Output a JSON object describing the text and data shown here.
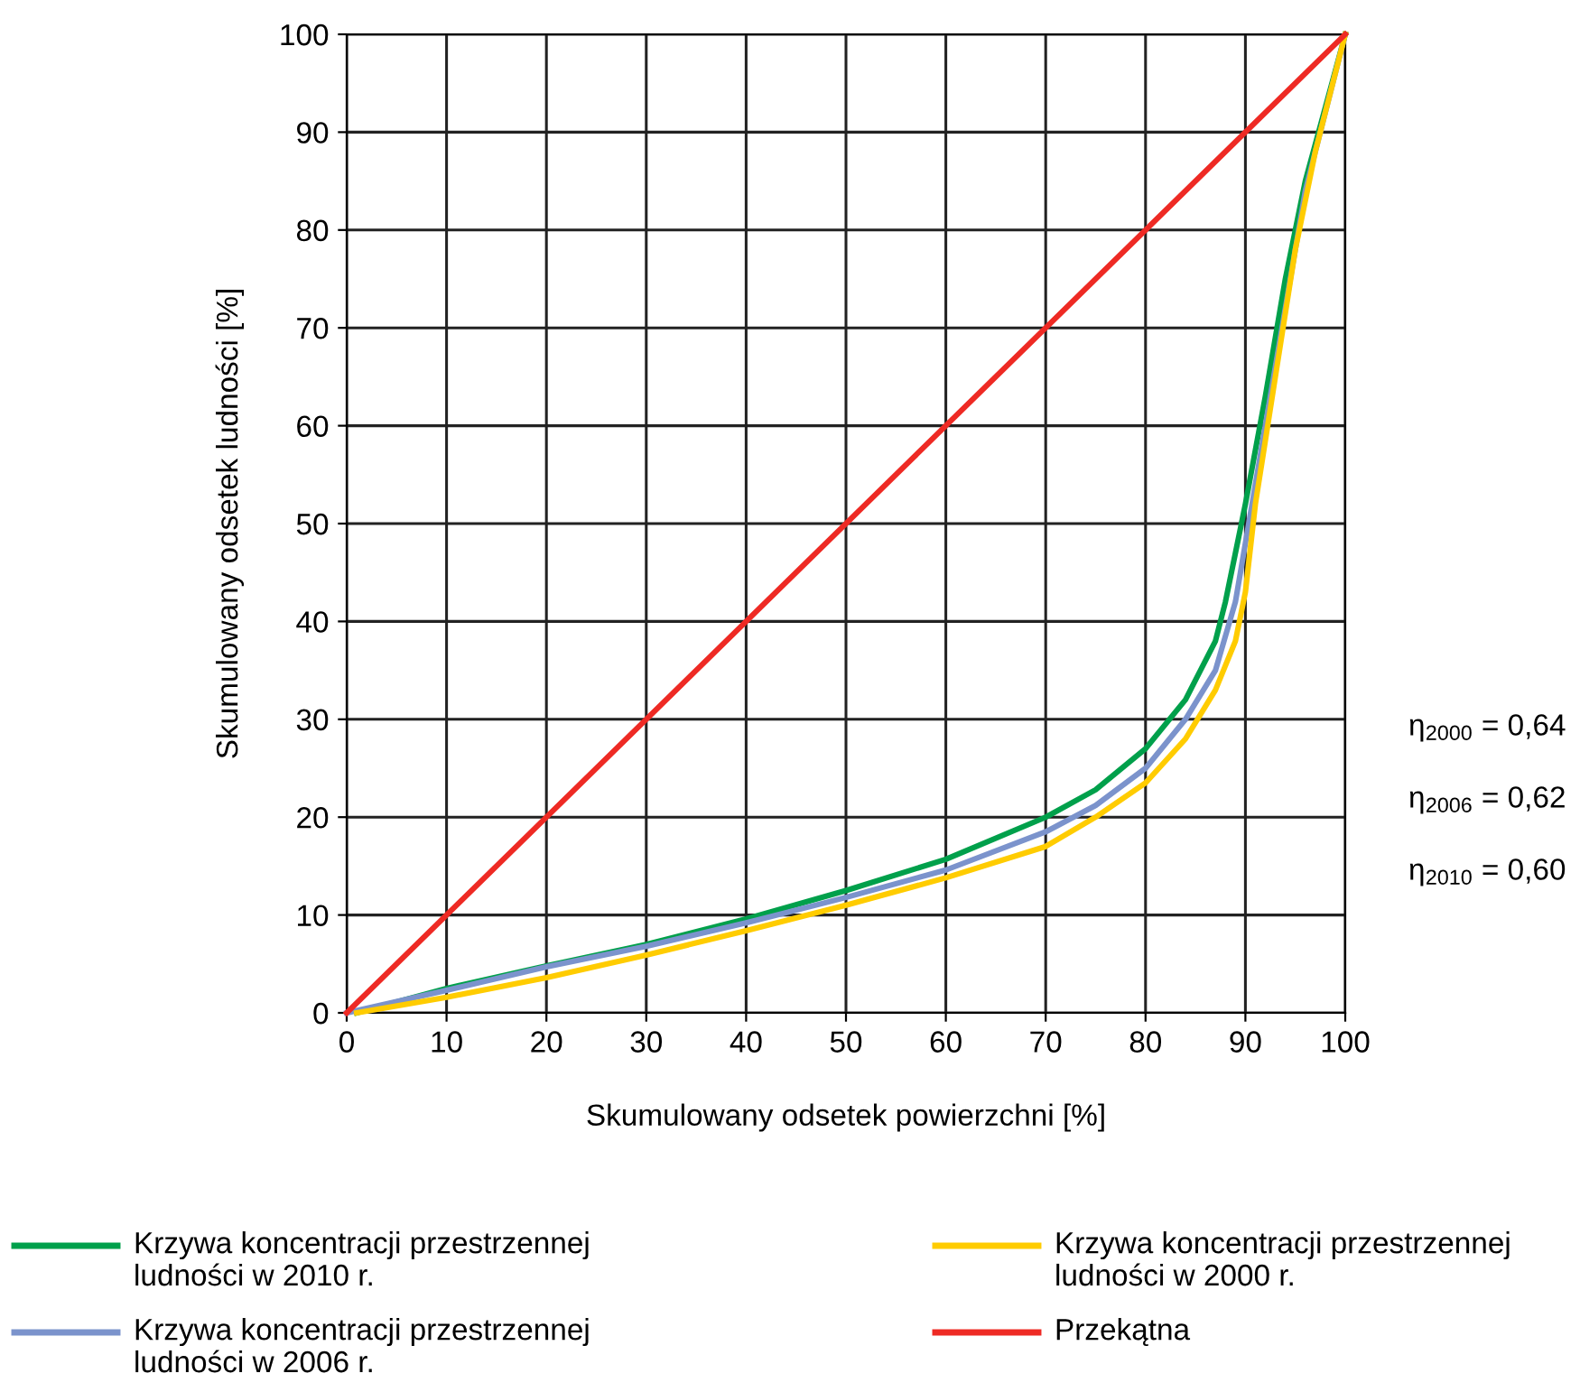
{
  "chart_data": {
    "type": "line",
    "xlabel": "Skumulowany odsetek powierzchni [%]",
    "ylabel": "Skumulowany odsetek ludności [%]",
    "xlim": [
      0,
      100
    ],
    "ylim": [
      0,
      100
    ],
    "xticks": [
      0,
      10,
      20,
      30,
      40,
      50,
      60,
      70,
      80,
      90,
      100
    ],
    "yticks": [
      0,
      10,
      20,
      30,
      40,
      50,
      60,
      70,
      80,
      90,
      100
    ],
    "grid": true,
    "legend": "bottom",
    "marker": "none",
    "line_style": "solid",
    "series": [
      {
        "name": "Krzywa koncentracji przestrzennej ludności w 2010 r.",
        "color": "#00a04b",
        "x": [
          1,
          10,
          20,
          30,
          40,
          50,
          60,
          70,
          75,
          80,
          84,
          87,
          88,
          89,
          90,
          92,
          94,
          96,
          100
        ],
        "values": [
          0,
          2.5,
          4.8,
          7,
          9.6,
          12.5,
          15.7,
          20,
          22.8,
          27,
          32,
          38,
          42,
          47,
          52,
          63,
          75,
          85,
          100
        ]
      },
      {
        "name": "Krzywa koncentracji przestrzennej ludności w 2006 r.",
        "color": "#7b93cc",
        "x": [
          0,
          10,
          20,
          30,
          40,
          50,
          60,
          70,
          75,
          80,
          84,
          87,
          89,
          90,
          92,
          94,
          96,
          100
        ],
        "values": [
          0,
          2.3,
          4.7,
          6.8,
          9.2,
          11.8,
          14.6,
          18.5,
          21.2,
          25,
          30,
          35,
          42,
          48,
          60,
          72,
          84,
          100
        ]
      },
      {
        "name": "Krzywa koncentracji przestrzennej ludności w 2000 r.",
        "color": "#ffcc00",
        "x": [
          1,
          10,
          20,
          30,
          40,
          50,
          60,
          70,
          75,
          80,
          84,
          87,
          89,
          90,
          91,
          93,
          95,
          97,
          100
        ],
        "values": [
          0,
          1.6,
          3.6,
          5.9,
          8.4,
          11,
          13.8,
          17,
          20,
          23.5,
          28,
          33,
          38,
          43,
          52,
          65,
          78,
          88,
          100
        ]
      },
      {
        "name": "Przekątna",
        "color": "#ee2a24",
        "x": [
          0,
          100
        ],
        "values": [
          0,
          100
        ]
      }
    ],
    "annotations": [
      "η$_{2000}$ = 0,64",
      "η$_{2006}$ = 0,62",
      "η$_{2010}$ = 0,60"
    ]
  }
}
